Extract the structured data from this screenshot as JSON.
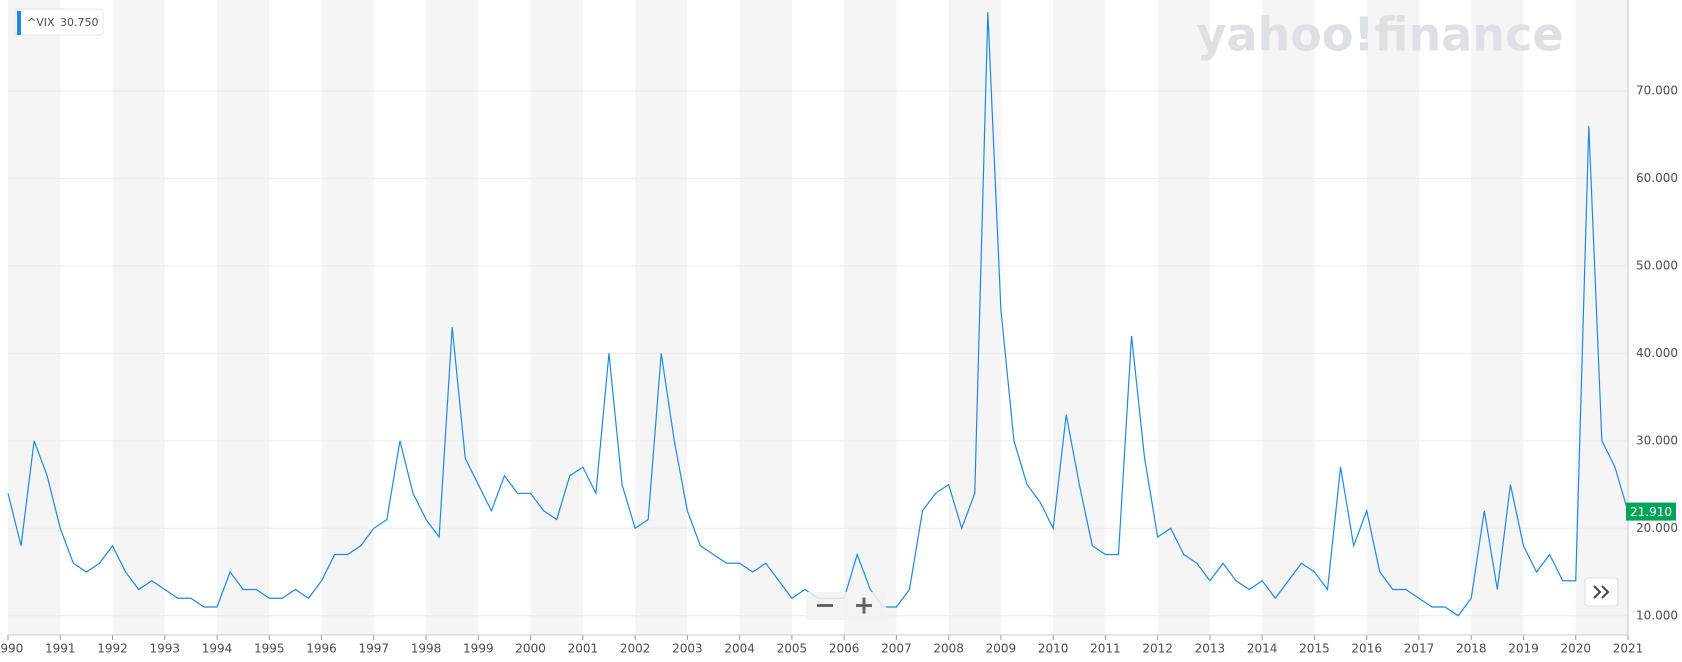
{
  "chart_data": {
    "type": "line",
    "watermark": "yahoo!finance",
    "legend_value": "30.750",
    "last_price": {
      "value": 21.91,
      "label": "21.910"
    },
    "shading": "alternate-years",
    "xlim": [
      1990,
      2021
    ],
    "ylim": [
      7.8,
      80.4
    ],
    "xticks": [
      1990,
      1991,
      1992,
      1993,
      1994,
      1995,
      1996,
      1997,
      1998,
      1999,
      2000,
      2001,
      2002,
      2003,
      2004,
      2005,
      2006,
      2007,
      2008,
      2009,
      2010,
      2011,
      2012,
      2013,
      2014,
      2015,
      2016,
      2017,
      2018,
      2019,
      2020,
      2021
    ],
    "yticks": [
      {
        "value": 10,
        "label": "10.000"
      },
      {
        "value": 20,
        "label": "20.000"
      },
      {
        "value": 30,
        "label": "30.000"
      },
      {
        "value": 40,
        "label": "40.000"
      },
      {
        "value": 50,
        "label": "50.000"
      },
      {
        "value": 60,
        "label": "60.000"
      },
      {
        "value": 70,
        "label": "70.000"
      }
    ],
    "grid": true,
    "x": [
      1990,
      1990.25,
      1990.5,
      1990.75,
      1991,
      1991.25,
      1991.5,
      1991.75,
      1992,
      1992.25,
      1992.5,
      1992.75,
      1993,
      1993.25,
      1993.5,
      1993.75,
      1994,
      1994.25,
      1994.5,
      1994.75,
      1995,
      1995.25,
      1995.5,
      1995.75,
      1996,
      1996.25,
      1996.5,
      1996.75,
      1997,
      1997.25,
      1997.5,
      1997.75,
      1998,
      1998.25,
      1998.5,
      1998.75,
      1999,
      1999.25,
      1999.5,
      1999.75,
      2000,
      2000.25,
      2000.5,
      2000.75,
      2001,
      2001.25,
      2001.5,
      2001.75,
      2002,
      2002.25,
      2002.5,
      2002.75,
      2003,
      2003.25,
      2003.5,
      2003.75,
      2004,
      2004.25,
      2004.5,
      2004.75,
      2005,
      2005.25,
      2005.5,
      2005.75,
      2006,
      2006.25,
      2006.5,
      2006.75,
      2007,
      2007.25,
      2007.5,
      2007.75,
      2008,
      2008.25,
      2008.5,
      2008.75,
      2009,
      2009.25,
      2009.5,
      2009.75,
      2010,
      2010.25,
      2010.5,
      2010.75,
      2011,
      2011.25,
      2011.5,
      2011.75,
      2012,
      2012.25,
      2012.5,
      2012.75,
      2013,
      2013.25,
      2013.5,
      2013.75,
      2014,
      2014.25,
      2014.5,
      2014.75,
      2015,
      2015.25,
      2015.5,
      2015.75,
      2016,
      2016.25,
      2016.5,
      2016.75,
      2017,
      2017.25,
      2017.5,
      2017.75,
      2018,
      2018.25,
      2018.5,
      2018.75,
      2019,
      2019.25,
      2019.5,
      2019.75,
      2020,
      2020.25,
      2020.5,
      2020.75,
      2021
    ],
    "series": [
      {
        "name": "^VIX",
        "color": "#1e88e5",
        "values": [
          24,
          18,
          30,
          26,
          20,
          16,
          15,
          16,
          18,
          15,
          13,
          14,
          13,
          12,
          12,
          11,
          11,
          15,
          13,
          13,
          12,
          12,
          13,
          12,
          14,
          17,
          17,
          18,
          20,
          21,
          30,
          24,
          21,
          19,
          43,
          28,
          25,
          22,
          26,
          24,
          24,
          22,
          21,
          26,
          27,
          24,
          40,
          25,
          20,
          21,
          40,
          30,
          22,
          18,
          17,
          16,
          16,
          15,
          16,
          14,
          12,
          13,
          12,
          12,
          12,
          17,
          13,
          11,
          11,
          13,
          22,
          24,
          25,
          20,
          24,
          79,
          45,
          30,
          25,
          23,
          20,
          33,
          25,
          18,
          17,
          17,
          42,
          28,
          19,
          20,
          17,
          16,
          14,
          16,
          14,
          13,
          14,
          12,
          14,
          16,
          15,
          13,
          27,
          18,
          22,
          15,
          13,
          13,
          12,
          11,
          11,
          10,
          12,
          22,
          13,
          25,
          18,
          15,
          17,
          14,
          14,
          66,
          30,
          27,
          21.91
        ]
      }
    ]
  }
}
